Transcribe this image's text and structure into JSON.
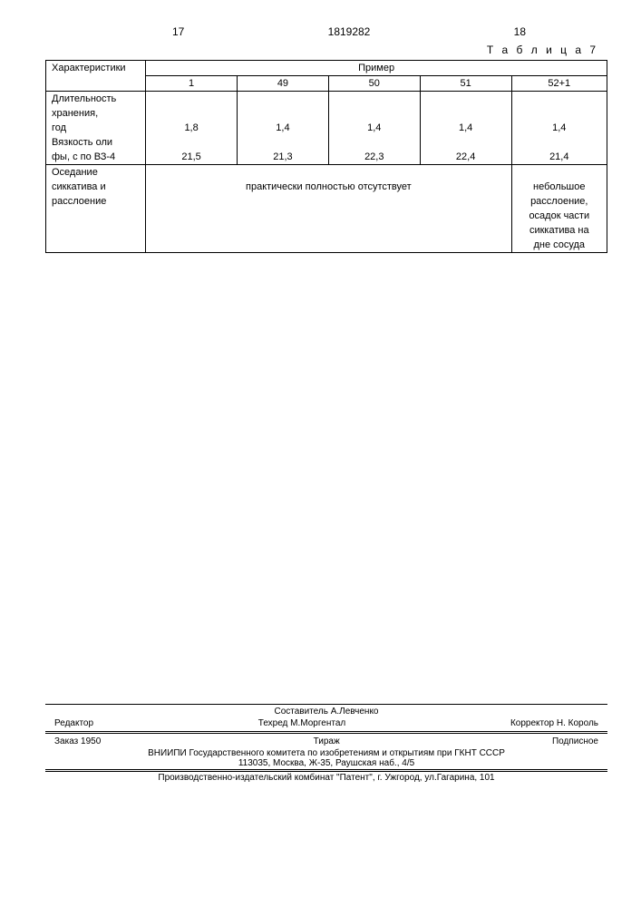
{
  "header": {
    "left_page": "17",
    "doc_number": "1819282",
    "right_page": "18"
  },
  "table": {
    "label": "Т а б л и ц а  7",
    "col0_header": "Характеристи­ки",
    "group_header": "Пример",
    "cols": [
      "1",
      "49",
      "50",
      "51",
      "52+1"
    ],
    "row1_label_a": "Длительность",
    "row1_label_b": "хранения,",
    "row1_label_c": "год",
    "row1_vals": [
      "1,8",
      "1,4",
      "1,4",
      "1,4",
      "1,4"
    ],
    "row2_label_a": "Вязкость оли­",
    "row2_label_b": "фы, с по ВЗ-4",
    "row2_vals": [
      "21,5",
      "21,3",
      "22,3",
      "22,4",
      "21,4"
    ],
    "row3_label_a": "Оседание",
    "row3_label_b": "сиккатива и",
    "row3_label_c": "расслоение",
    "row3_span_text": "практически полностью отсутствует",
    "row3_col5_a": "небольшое",
    "row3_col5_b": "расслоение,",
    "row3_col5_c": "осадок части",
    "row3_col5_d": "сиккатива на",
    "row3_col5_e": "дне сосуда"
  },
  "footer": {
    "compiler": "Составитель А.Левченко",
    "editor_label": "Редактор",
    "tech": "Техред М.Моргентал",
    "corrector": "Корректор Н. Король",
    "order": "Заказ 1950",
    "circulation": "Тираж",
    "subscription": "Подписное",
    "org": "ВНИИПИ Государственного комитета по изобретениям и открытиям при ГКНТ СССР",
    "addr": "113035, Москва, Ж-35, Раушская наб., 4/5",
    "publisher": "Производственно-издательский комбинат \"Патент\", г. Ужгород, ул.Гагарина, 101"
  }
}
